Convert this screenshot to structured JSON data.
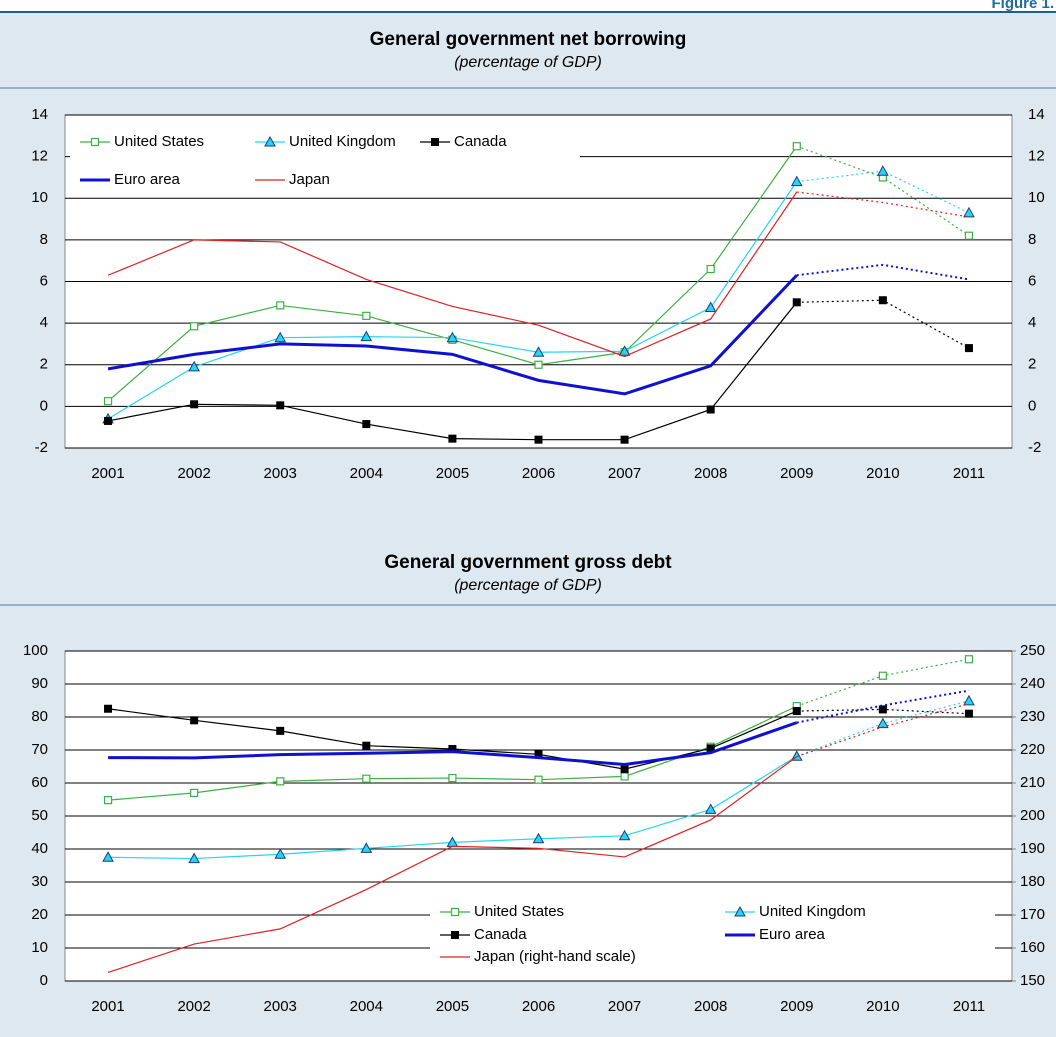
{
  "figure_label": "Figure 1.",
  "chart_data": [
    {
      "type": "line",
      "title": "General government net borrowing",
      "subtitle": "(percentage of GDP)",
      "categories": [
        "2001",
        "2002",
        "2003",
        "2004",
        "2005",
        "2006",
        "2007",
        "2008",
        "2009",
        "2010",
        "2011"
      ],
      "series": [
        {
          "name": "United States",
          "color": "#3cb043",
          "marker": "open-square",
          "values": [
            0.25,
            3.85,
            4.85,
            4.35,
            3.2,
            2.0,
            2.6,
            6.6,
            12.5,
            11.0,
            8.2
          ]
        },
        {
          "name": "United Kingdom",
          "color": "#27d4f2",
          "marker": "triangle",
          "values": [
            -0.6,
            1.9,
            3.3,
            3.35,
            3.3,
            2.6,
            2.65,
            4.75,
            10.8,
            11.3,
            9.3
          ]
        },
        {
          "name": "Canada",
          "color": "#000000",
          "marker": "square",
          "values": [
            -0.7,
            0.1,
            0.05,
            -0.85,
            -1.55,
            -1.6,
            -1.6,
            -0.15,
            5.0,
            5.1,
            2.8
          ]
        },
        {
          "name": "Euro area",
          "color": "#1010d0",
          "marker": "none",
          "width": 3,
          "values": [
            1.8,
            2.5,
            3.0,
            2.9,
            2.5,
            1.25,
            0.6,
            1.95,
            6.3,
            6.8,
            6.1
          ]
        },
        {
          "name": "Japan",
          "color": "#e02020",
          "marker": "none",
          "values": [
            6.3,
            8.0,
            7.9,
            6.1,
            4.8,
            3.9,
            2.4,
            4.2,
            10.3,
            9.8,
            9.1
          ]
        }
      ],
      "ylim": [
        -2,
        14
      ],
      "yticks": [
        -2,
        0,
        2,
        4,
        6,
        8,
        10,
        12,
        14
      ],
      "grid": true,
      "legend": "upper left",
      "dotted_from": "2009"
    },
    {
      "type": "line",
      "title": "General government gross debt",
      "subtitle": "(percentage of GDP)",
      "categories": [
        "2001",
        "2002",
        "2003",
        "2004",
        "2005",
        "2006",
        "2007",
        "2008",
        "2009",
        "2010",
        "2011"
      ],
      "series": [
        {
          "name": "United States",
          "color": "#3cb043",
          "marker": "open-square",
          "values": [
            54.8,
            57.0,
            60.5,
            61.3,
            61.5,
            61.0,
            62.0,
            71.0,
            83.3,
            92.5,
            97.5
          ]
        },
        {
          "name": "United Kingdom",
          "color": "#27d4f2",
          "marker": "triangle",
          "values": [
            37.5,
            37.1,
            38.4,
            40.2,
            42.0,
            43.1,
            44.0,
            52.0,
            68.1,
            78.0,
            84.9
          ]
        },
        {
          "name": "Canada",
          "color": "#000000",
          "marker": "square",
          "values": [
            82.5,
            79.0,
            75.8,
            71.3,
            70.3,
            68.7,
            64.2,
            70.5,
            81.8,
            82.3,
            81.0
          ]
        },
        {
          "name": "Euro area",
          "color": "#1010d0",
          "marker": "none",
          "width": 3,
          "values": [
            67.7,
            67.6,
            68.6,
            69.0,
            69.5,
            67.7,
            65.6,
            69.2,
            78.3,
            83.5,
            88.0
          ]
        },
        {
          "name": "Japan (right-hand scale)",
          "color": "#e02020",
          "marker": "none",
          "axis": "y2",
          "values": [
            152.6,
            161.2,
            165.8,
            177.7,
            190.8,
            190.2,
            187.6,
            198.8,
            218.0,
            227.0,
            234.0
          ]
        }
      ],
      "ylim": [
        0,
        100
      ],
      "yticks": [
        0,
        10,
        20,
        30,
        40,
        50,
        60,
        70,
        80,
        90,
        100
      ],
      "y2lim": [
        150,
        250
      ],
      "y2ticks": [
        150,
        160,
        170,
        180,
        190,
        200,
        210,
        220,
        230,
        240,
        250
      ],
      "grid": true,
      "legend": "lower center",
      "dotted_from": "2009"
    }
  ]
}
